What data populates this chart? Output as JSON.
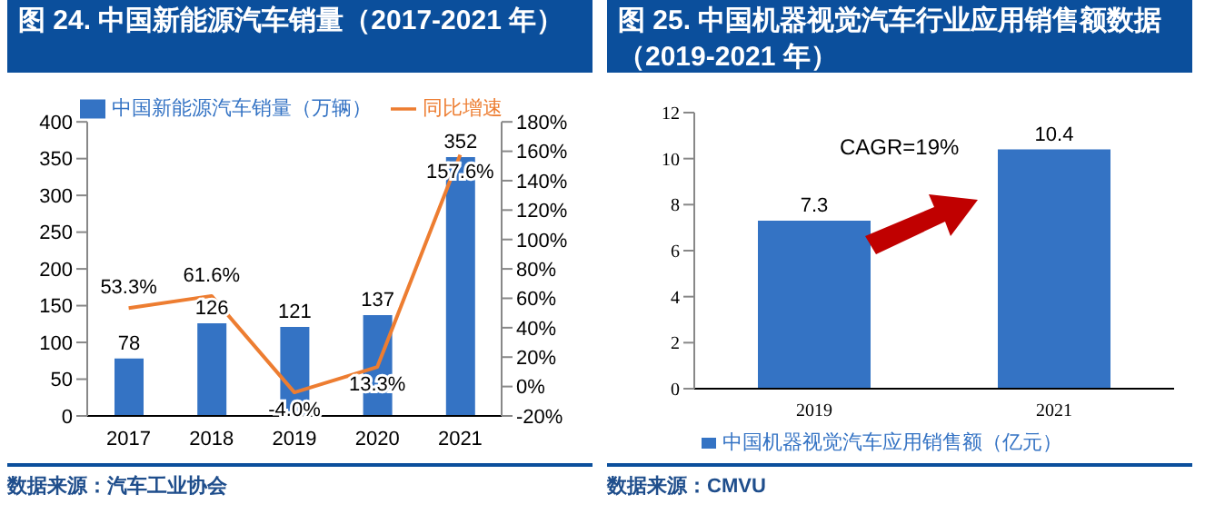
{
  "chart_data": [
    {
      "type": "bar",
      "title": "图 24. 中国新能源汽车销量（2017-2021 年）",
      "categories": [
        "2017",
        "2018",
        "2019",
        "2020",
        "2021"
      ],
      "series": [
        {
          "name": "中国新能源汽车销量（万辆）",
          "color": "#3473c4",
          "values": [
            78,
            126,
            121,
            137,
            352
          ]
        },
        {
          "name": "同比增速",
          "type": "line",
          "axis": "y2",
          "color": "#ed7d31",
          "values": [
            53.3,
            61.6,
            -4.0,
            13.3,
            157.6
          ],
          "value_labels": [
            "53.3%",
            "61.6%",
            "-4.0%",
            "13.3%",
            "157.6%"
          ]
        }
      ],
      "ylim": [
        0,
        400
      ],
      "yticks": [
        0,
        50,
        100,
        150,
        200,
        250,
        300,
        350,
        400
      ],
      "y2lim": [
        -20,
        180
      ],
      "y2ticks": [
        {
          "value": -20,
          "label": "-20%"
        },
        {
          "value": 0,
          "label": "0%"
        },
        {
          "value": 20,
          "label": "20%"
        },
        {
          "value": 40,
          "label": "40%"
        },
        {
          "value": 60,
          "label": "60%"
        },
        {
          "value": 80,
          "label": "80%"
        },
        {
          "value": 100,
          "label": "100%"
        },
        {
          "value": 120,
          "label": "120%"
        },
        {
          "value": 140,
          "label": "140%"
        },
        {
          "value": 160,
          "label": "160%"
        },
        {
          "value": 180,
          "label": "180%"
        }
      ],
      "data_labels": true,
      "legend": "top",
      "marker": "none",
      "annotations": [
        "数据来源：汽车工业协会"
      ]
    },
    {
      "type": "bar",
      "title": "图 25. 中国机器视觉汽车行业应用销售额数据（2019-2021 年）",
      "categories": [
        "2019",
        "2021"
      ],
      "series": [
        {
          "name": "中国机器视觉汽车应用销售额（亿元）",
          "color": "#3473c4",
          "values": [
            7.3,
            10.4
          ]
        }
      ],
      "ylim": [
        0,
        12
      ],
      "yticks": [
        0,
        2,
        4,
        6,
        8,
        10,
        12
      ],
      "data_labels": true,
      "legend": "bottom",
      "annotations": [
        "CAGR=19%",
        "数据来源：CMVU"
      ]
    }
  ]
}
